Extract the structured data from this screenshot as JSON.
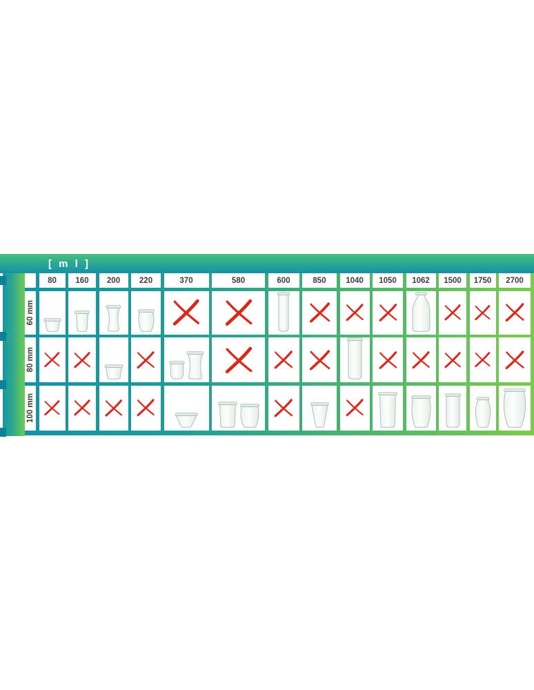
{
  "header": {
    "unit_label": "[ m l ]"
  },
  "table": {
    "columns": [
      "80",
      "160",
      "200",
      "220",
      "370",
      "580",
      "600",
      "850",
      "1040",
      "1050",
      "1062",
      "1500",
      "1750",
      "2700"
    ],
    "rows": [
      {
        "label": "60 mm",
        "cells": [
          {
            "type": "jar",
            "jars": [
              {
                "shape": "mold-squat",
                "w": 26,
                "h": 20
              }
            ]
          },
          {
            "type": "jar",
            "jars": [
              {
                "shape": "mold-small",
                "w": 24,
                "h": 31
              }
            ]
          },
          {
            "type": "jar",
            "jars": [
              {
                "shape": "hourglass",
                "w": 23,
                "h": 39
              }
            ]
          },
          {
            "type": "jar",
            "jars": [
              {
                "shape": "tulip-small",
                "w": 26,
                "h": 33
              }
            ]
          },
          {
            "type": "x"
          },
          {
            "type": "x"
          },
          {
            "type": "jar",
            "jars": [
              {
                "shape": "cylinder-tall",
                "w": 20,
                "h": 58
              }
            ]
          },
          {
            "type": "x"
          },
          {
            "type": "x"
          },
          {
            "type": "x"
          },
          {
            "type": "jar",
            "jars": [
              {
                "shape": "bottle",
                "w": 27,
                "h": 58
              }
            ]
          },
          {
            "type": "x"
          },
          {
            "type": "x"
          },
          {
            "type": "x"
          }
        ]
      },
      {
        "label": "80 mm",
        "cells": [
          {
            "type": "x"
          },
          {
            "type": "x"
          },
          {
            "type": "jar",
            "jars": [
              {
                "shape": "mold-squat",
                "w": 28,
                "h": 22
              }
            ]
          },
          {
            "type": "x"
          },
          {
            "type": "jar",
            "jars": [
              {
                "shape": "tumbler",
                "w": 23,
                "h": 27
              },
              {
                "shape": "hourglass",
                "w": 26,
                "h": 41
              }
            ]
          },
          {
            "type": "x"
          },
          {
            "type": "x"
          },
          {
            "type": "x"
          },
          {
            "type": "jar",
            "jars": [
              {
                "shape": "cylinder-tall",
                "w": 25,
                "h": 61
              }
            ]
          },
          {
            "type": "x"
          },
          {
            "type": "x"
          },
          {
            "type": "x"
          },
          {
            "type": "x"
          },
          {
            "type": "x"
          }
        ]
      },
      {
        "label": "100 mm",
        "cells": [
          {
            "type": "x"
          },
          {
            "type": "x"
          },
          {
            "type": "x"
          },
          {
            "type": "x"
          },
          {
            "type": "jar",
            "jars": [
              {
                "shape": "bowl-low",
                "w": 34,
                "h": 22
              }
            ]
          },
          {
            "type": "jar",
            "jars": [
              {
                "shape": "mold-tall",
                "w": 30,
                "h": 38
              },
              {
                "shape": "tulip-round",
                "w": 30,
                "h": 35
              }
            ]
          },
          {
            "type": "x"
          },
          {
            "type": "jar",
            "jars": [
              {
                "shape": "cup-taper",
                "w": 27,
                "h": 37
              }
            ]
          },
          {
            "type": "x"
          },
          {
            "type": "jar",
            "jars": [
              {
                "shape": "mold-tall",
                "w": 30,
                "h": 52
              }
            ]
          },
          {
            "type": "jar",
            "jars": [
              {
                "shape": "tulip-round",
                "w": 31,
                "h": 47
              }
            ]
          },
          {
            "type": "jar",
            "jars": [
              {
                "shape": "cylinder-med",
                "w": 25,
                "h": 50
              }
            ]
          },
          {
            "type": "jar",
            "jars": [
              {
                "shape": "tulip-neck",
                "w": 26,
                "h": 45
              }
            ]
          },
          {
            "type": "jar",
            "jars": [
              {
                "shape": "tulip-large",
                "w": 36,
                "h": 57
              }
            ]
          }
        ]
      }
    ]
  },
  "icons": {
    "unavailable": "red-x-mark-icon",
    "available": "glass-jar-image"
  },
  "colors": {
    "teal": "#1394A6",
    "green": "#7CCB4D",
    "red_x": "#DA291C",
    "text": "#3C3C3B"
  },
  "chart_data": {
    "type": "table",
    "title": "[ m l ]",
    "columns": [
      "80",
      "160",
      "200",
      "220",
      "370",
      "580",
      "600",
      "850",
      "1040",
      "1050",
      "1062",
      "1500",
      "1750",
      "2700"
    ],
    "rows": [
      "60 mm",
      "80 mm",
      "100 mm"
    ],
    "matrix": [
      [
        "mold-squat",
        "mold-small",
        "hourglass",
        "tulip-small",
        "x",
        "x",
        "cylinder-tall",
        "x",
        "x",
        "x",
        "bottle",
        "x",
        "x",
        "x"
      ],
      [
        "x",
        "x",
        "mold-squat",
        "x",
        "tumbler+hourglass",
        "x",
        "x",
        "x",
        "cylinder-tall",
        "x",
        "x",
        "x",
        "x",
        "x"
      ],
      [
        "x",
        "x",
        "x",
        "x",
        "bowl-low",
        "mold-tall+tulip-round",
        "x",
        "cup-taper",
        "x",
        "mold-tall",
        "tulip-round",
        "cylinder-med",
        "tulip-neck",
        "tulip-large"
      ]
    ],
    "legend": "x = size not available, jar image = size available",
    "layout": {
      "grid": true,
      "header_position": "top-left"
    }
  }
}
